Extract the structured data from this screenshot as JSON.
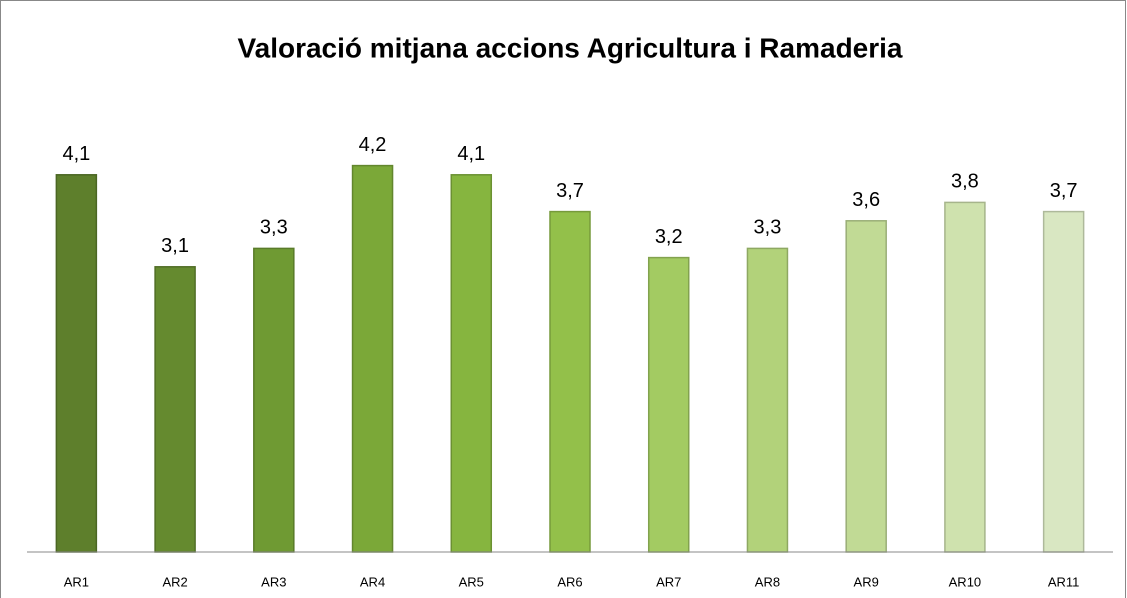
{
  "chart_data": {
    "type": "bar",
    "title": "Valoració mitjana accions Agricultura i Ramaderia",
    "categories": [
      "AR1",
      "AR2",
      "AR3",
      "AR4",
      "AR5",
      "AR6",
      "AR7",
      "AR8",
      "AR9",
      "AR10",
      "AR11"
    ],
    "values": [
      4.1,
      3.1,
      3.3,
      4.2,
      4.1,
      3.7,
      3.2,
      3.3,
      3.6,
      3.8,
      3.7
    ],
    "value_labels": [
      "4,1",
      "3,1",
      "3,3",
      "4,2",
      "4,1",
      "3,7",
      "3,2",
      "3,3",
      "3,6",
      "3,8",
      "3,7"
    ],
    "colors": [
      "#5e7f2c",
      "#658a2f",
      "#6f9a33",
      "#7ba838",
      "#86b53f",
      "#93c04a",
      "#a3cb62",
      "#b2d27a",
      "#c1da95",
      "#cfe2ae",
      "#d9e7c2"
    ],
    "ylim": [
      0,
      4.5
    ]
  }
}
